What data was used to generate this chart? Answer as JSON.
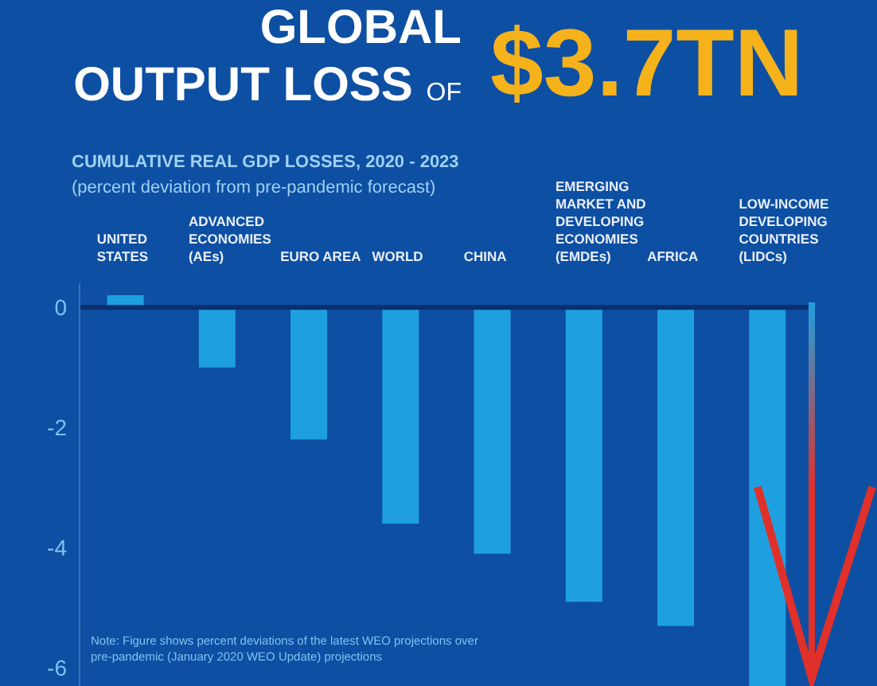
{
  "chart_data": {
    "type": "bar",
    "title": "GLOBAL OUTPUT LOSS OF $3.7TN",
    "subtitle": "CUMULATIVE REAL GDP LOSSES, 2020 - 2023",
    "ylabel": "(percent deviation from pre-pandemic forecast)",
    "categories": [
      "UNITED STATES",
      "ADVANCED ECONOMIES (AEs)",
      "EURO AREA",
      "WORLD",
      "CHINA",
      "EMERGING MARKET AND DEVELOPING ECONOMIES (EMDEs)",
      "AFRICA",
      "LOW-INCOME DEVELOPING COUNTRIES (LIDCs)"
    ],
    "values": [
      0.2,
      -1.0,
      -2.2,
      -3.6,
      -4.1,
      -4.9,
      -5.3,
      -6.3
    ],
    "color": "#1ea0e0",
    "ylim": [
      -6.3,
      0.4
    ],
    "ref_lines": [
      {
        "axis": "y",
        "value": 0,
        "color": "#0a2f6e"
      }
    ],
    "yticks": [
      0,
      -2,
      -4,
      -6
    ],
    "grid": false,
    "legend": false,
    "annotations": [
      "Note: Figure shows percent deviations of the latest WEO projections over pre-pandemic (January 2020 WEO Update) projections"
    ]
  }
}
